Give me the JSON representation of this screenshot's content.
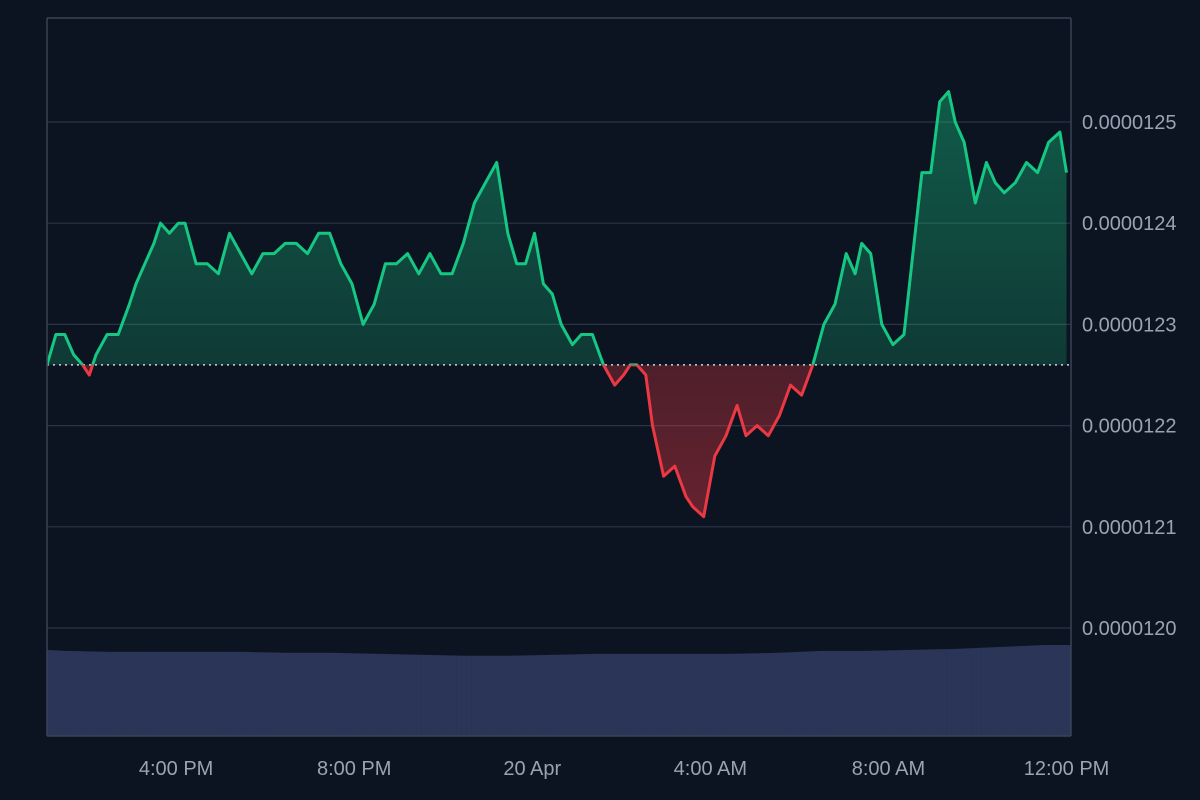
{
  "colors": {
    "background": "#0d1421",
    "grid": "#2b3445",
    "axis": "#3a4354",
    "tick_text": "#9aa3b2",
    "up": "#16c784",
    "down": "#ea3943",
    "volume": "#2a3558",
    "baseline": "#d0d5dd"
  },
  "chart_data": {
    "type": "area",
    "title": "",
    "xlabel": "",
    "ylabel": "",
    "baseline_value": 1.226e-05,
    "ylim": [
      1.19e-05,
      1.26e-05
    ],
    "y_ticks": [
      {
        "value": 1.25e-05,
        "label": "0.0000125"
      },
      {
        "value": 1.24e-05,
        "label": "0.0000124"
      },
      {
        "value": 1.23e-05,
        "label": "0.0000123"
      },
      {
        "value": 1.22e-05,
        "label": "0.0000122"
      },
      {
        "value": 1.21e-05,
        "label": "0.0000121"
      },
      {
        "value": 1.2e-05,
        "label": "0.0000120"
      }
    ],
    "x_range_hours": [
      13.1,
      36.1
    ],
    "x_ticks": [
      {
        "hour": 16,
        "label": "4:00 PM"
      },
      {
        "hour": 20,
        "label": "8:00 PM"
      },
      {
        "hour": 24,
        "label": "20 Apr"
      },
      {
        "hour": 28,
        "label": "4:00 AM"
      },
      {
        "hour": 32,
        "label": "8:00 AM"
      },
      {
        "hour": 36,
        "label": "12:00 PM"
      }
    ],
    "price_series": {
      "x_hours": [
        13.1,
        13.3,
        13.5,
        13.7,
        13.9,
        14.05,
        14.2,
        14.45,
        14.7,
        14.95,
        15.1,
        15.3,
        15.5,
        15.65,
        15.85,
        16.05,
        16.2,
        16.45,
        16.7,
        16.95,
        17.2,
        17.45,
        17.7,
        17.95,
        18.2,
        18.45,
        18.7,
        18.95,
        19.2,
        19.45,
        19.7,
        19.95,
        20.2,
        20.45,
        20.7,
        20.95,
        21.2,
        21.45,
        21.7,
        21.95,
        22.2,
        22.45,
        22.7,
        22.95,
        23.2,
        23.45,
        23.65,
        23.85,
        24.05,
        24.25,
        24.45,
        24.65,
        24.9,
        25.1,
        25.35,
        25.6,
        25.85,
        26.05,
        26.2,
        26.35,
        26.55,
        26.7,
        26.95,
        27.2,
        27.45,
        27.6,
        27.85,
        28.1,
        28.35,
        28.6,
        28.8,
        29.05,
        29.3,
        29.55,
        29.8,
        30.05,
        30.3,
        30.55,
        30.8,
        31.05,
        31.25,
        31.4,
        31.6,
        31.85,
        32.1,
        32.35,
        32.55,
        32.75,
        32.95,
        33.15,
        33.35,
        33.5,
        33.7,
        33.95,
        34.2,
        34.4,
        34.6,
        34.85,
        35.1,
        35.35,
        35.6,
        35.85,
        36.0
      ],
      "y_values": [
        1.226e-05,
        1.229e-05,
        1.229e-05,
        1.227e-05,
        1.226e-05,
        1.225e-05,
        1.227e-05,
        1.229e-05,
        1.229e-05,
        1.232e-05,
        1.234e-05,
        1.236e-05,
        1.238e-05,
        1.24e-05,
        1.239e-05,
        1.24e-05,
        1.24e-05,
        1.236e-05,
        1.236e-05,
        1.235e-05,
        1.239e-05,
        1.237e-05,
        1.235e-05,
        1.237e-05,
        1.237e-05,
        1.238e-05,
        1.238e-05,
        1.237e-05,
        1.239e-05,
        1.239e-05,
        1.236e-05,
        1.234e-05,
        1.23e-05,
        1.232e-05,
        1.236e-05,
        1.236e-05,
        1.237e-05,
        1.235e-05,
        1.237e-05,
        1.235e-05,
        1.235e-05,
        1.238e-05,
        1.242e-05,
        1.244e-05,
        1.246e-05,
        1.239e-05,
        1.236e-05,
        1.236e-05,
        1.239e-05,
        1.234e-05,
        1.233e-05,
        1.23e-05,
        1.228e-05,
        1.229e-05,
        1.229e-05,
        1.226e-05,
        1.224e-05,
        1.225e-05,
        1.226e-05,
        1.226e-05,
        1.225e-05,
        1.22e-05,
        1.215e-05,
        1.216e-05,
        1.213e-05,
        1.212e-05,
        1.211e-05,
        1.217e-05,
        1.219e-05,
        1.222e-05,
        1.219e-05,
        1.22e-05,
        1.219e-05,
        1.221e-05,
        1.224e-05,
        1.223e-05,
        1.226e-05,
        1.23e-05,
        1.232e-05,
        1.237e-05,
        1.235e-05,
        1.238e-05,
        1.237e-05,
        1.23e-05,
        1.228e-05,
        1.229e-05,
        1.237e-05,
        1.245e-05,
        1.245e-05,
        1.252e-05,
        1.253e-05,
        1.25e-05,
        1.248e-05,
        1.242e-05,
        1.246e-05,
        1.244e-05,
        1.243e-05,
        1.244e-05,
        1.246e-05,
        1.245e-05,
        1.248e-05,
        1.249e-05,
        1.245e-05
      ]
    },
    "volume_series": {
      "note_unit": "relative",
      "ylim": [
        0,
        1
      ],
      "x_hours": [
        13.1,
        13.5,
        14.5,
        15.5,
        16.5,
        17.5,
        18.5,
        19.5,
        20.5,
        21.5,
        22.5,
        23.5,
        24.5,
        25.5,
        26.5,
        27.5,
        28.5,
        29.5,
        30.5,
        31.5,
        32.5,
        33.5,
        34.5,
        35.5,
        36.1
      ],
      "values": [
        0.88,
        0.87,
        0.86,
        0.86,
        0.86,
        0.86,
        0.85,
        0.85,
        0.84,
        0.83,
        0.82,
        0.82,
        0.83,
        0.84,
        0.84,
        0.84,
        0.84,
        0.85,
        0.87,
        0.87,
        0.88,
        0.89,
        0.91,
        0.93,
        0.93
      ]
    }
  }
}
